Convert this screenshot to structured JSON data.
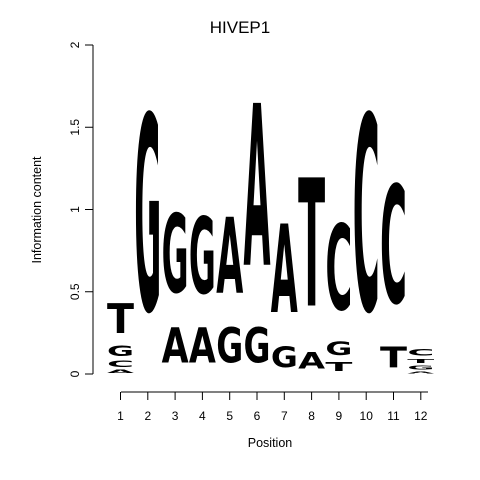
{
  "chart_data": {
    "type": "sequence_logo",
    "title": "HIVEP1",
    "xlabel": "Position",
    "ylabel": "Information content",
    "ylim": [
      0,
      2
    ],
    "yticks": [
      "0",
      "0.5",
      "1",
      "1.5",
      "2"
    ],
    "positions": [
      "1",
      "2",
      "3",
      "4",
      "5",
      "6",
      "7",
      "8",
      "9",
      "10",
      "11",
      "12"
    ],
    "colors": {
      "A": "#00ee00",
      "C": "#0000ee",
      "G": "#f5a000",
      "T": "#ee0000"
    },
    "stacks": [
      [
        {
          "letter": "A",
          "height": 0.03
        },
        {
          "letter": "C",
          "height": 0.06
        },
        {
          "letter": "G",
          "height": 0.1
        },
        {
          "letter": "T",
          "height": 0.29
        }
      ],
      [
        {
          "letter": "G",
          "height": 1.91
        }
      ],
      [
        {
          "letter": "A",
          "height": 0.34
        },
        {
          "letter": "G",
          "height": 0.77
        }
      ],
      [
        {
          "letter": "A",
          "height": 0.34
        },
        {
          "letter": "G",
          "height": 0.75
        }
      ],
      [
        {
          "letter": "G",
          "height": 0.34
        },
        {
          "letter": "A",
          "height": 0.74
        }
      ],
      [
        {
          "letter": "G",
          "height": 0.34
        },
        {
          "letter": "A",
          "height": 1.58
        }
      ],
      [
        {
          "letter": "G",
          "height": 0.2
        },
        {
          "letter": "A",
          "height": 0.86
        }
      ],
      [
        {
          "letter": "A",
          "height": 0.16
        },
        {
          "letter": "T",
          "height": 1.25
        }
      ],
      [
        {
          "letter": "T",
          "height": 0.09
        },
        {
          "letter": "G",
          "height": 0.13
        },
        {
          "letter": "C",
          "height": 0.84
        }
      ],
      [
        {
          "letter": "C",
          "height": 1.91
        }
      ],
      [
        {
          "letter": "T",
          "height": 0.2
        },
        {
          "letter": "C",
          "height": 1.15
        }
      ],
      [
        {
          "letter": "A",
          "height": 0.02
        },
        {
          "letter": "G",
          "height": 0.04
        },
        {
          "letter": "T",
          "height": 0.04
        },
        {
          "letter": "C",
          "height": 0.06
        }
      ]
    ]
  }
}
